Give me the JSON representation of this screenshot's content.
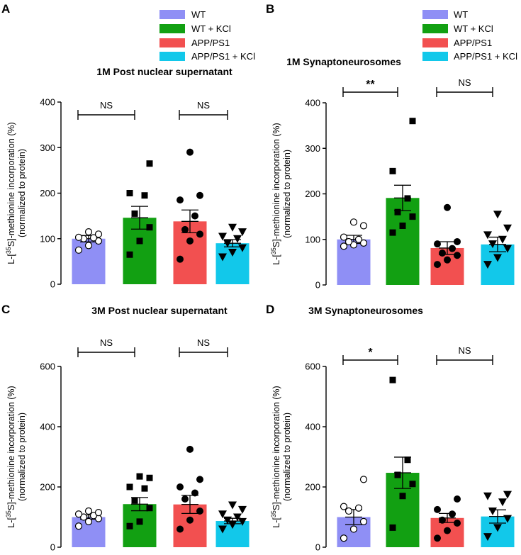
{
  "figure": {
    "ylabel_line1_prefix": "L-[",
    "ylabel_sup": "35",
    "ylabel_line1_suffix": "S]-methionine incorporation (%)",
    "ylabel_line2": "(normalized to protein)"
  },
  "legend": {
    "entries": [
      {
        "label": "WT",
        "color": "#8f8ff5"
      },
      {
        "label": "WT + KCl",
        "color": "#12a012"
      },
      {
        "label": "APP/PS1",
        "color": "#f25050"
      },
      {
        "label": "APP/PS1 + KCl",
        "color": "#12c8ea"
      }
    ]
  },
  "chart_data": [
    {
      "panel": "A",
      "type": "bar",
      "title": "1M Post nuclear supernatant",
      "categories": [
        "WT",
        "WT + KCl",
        "APP/PS1",
        "APP/PS1 + KCl"
      ],
      "values": [
        100,
        146,
        138,
        90
      ],
      "sem": [
        7,
        25,
        25,
        8
      ],
      "points": [
        [
          75,
          85,
          95,
          100,
          102,
          103,
          110,
          115
        ],
        [
          65,
          95,
          125,
          155,
          195,
          200,
          265
        ],
        [
          55,
          95,
          110,
          120,
          150,
          185,
          195,
          290
        ],
        [
          60,
          70,
          80,
          90,
          100,
          105,
          115,
          125
        ]
      ],
      "ylim": [
        0,
        400
      ],
      "yticks": [
        "0",
        "100",
        "200",
        "300",
        "400"
      ],
      "comparisons": [
        {
          "label": "NS",
          "from": 0,
          "to": 1
        },
        {
          "label": "NS",
          "from": 2,
          "to": 3
        }
      ],
      "colors": [
        "#8f8ff5",
        "#12a012",
        "#f25050",
        "#12c8ea"
      ]
    },
    {
      "panel": "B",
      "type": "bar",
      "title": "1M Synaptoneurosomes",
      "categories": [
        "WT",
        "WT + KCl",
        "APP/PS1",
        "APP/PS1 + KCl"
      ],
      "values": [
        100,
        191,
        81,
        89
      ],
      "sem": [
        9,
        28,
        14,
        16
      ],
      "points": [
        [
          85,
          88,
          92,
          95,
          100,
          105,
          130,
          138
        ],
        [
          115,
          130,
          150,
          160,
          190,
          250,
          360
        ],
        [
          45,
          55,
          65,
          70,
          80,
          90,
          95,
          170
        ],
        [
          45,
          60,
          80,
          90,
          100,
          110,
          125,
          155
        ]
      ],
      "ylim": [
        0,
        400
      ],
      "yticks": [
        "0",
        "100",
        "200",
        "300",
        "400"
      ],
      "comparisons": [
        {
          "label": "**",
          "from": 0,
          "to": 1
        },
        {
          "label": "NS",
          "from": 2,
          "to": 3
        }
      ],
      "colors": [
        "#8f8ff5",
        "#12a012",
        "#f25050",
        "#12c8ea"
      ]
    },
    {
      "panel": "C",
      "type": "bar",
      "title": "3M Post nuclear supernatant",
      "categories": [
        "WT",
        "WT + KCl",
        "APP/PS1",
        "APP/PS1 + KCl"
      ],
      "values": [
        100,
        143,
        142,
        87
      ],
      "sem": [
        7,
        22,
        30,
        9
      ],
      "points": [
        [
          70,
          85,
          95,
          100,
          105,
          110,
          115,
          120
        ],
        [
          70,
          85,
          130,
          155,
          195,
          200,
          230,
          235
        ],
        [
          60,
          90,
          120,
          160,
          180,
          200,
          225,
          325
        ],
        [
          60,
          75,
          85,
          90,
          100,
          110,
          125,
          140
        ]
      ],
      "ylim": [
        0,
        600
      ],
      "yticks": [
        "0",
        "200",
        "400",
        "600"
      ],
      "comparisons": [
        {
          "label": "NS",
          "from": 0,
          "to": 1
        },
        {
          "label": "NS",
          "from": 2,
          "to": 3
        }
      ],
      "colors": [
        "#8f8ff5",
        "#12a012",
        "#f25050",
        "#12c8ea"
      ]
    },
    {
      "panel": "D",
      "type": "bar",
      "title": "3M Synaptoneurosomes",
      "categories": [
        "WT",
        "WT + KCl",
        "APP/PS1",
        "APP/PS1 + KCl"
      ],
      "values": [
        100,
        247,
        97,
        102
      ],
      "sem": [
        25,
        52,
        15,
        22
      ],
      "points": [
        [
          30,
          60,
          85,
          120,
          130,
          135,
          225
        ],
        [
          65,
          170,
          210,
          240,
          290,
          555
        ],
        [
          30,
          55,
          80,
          90,
          110,
          125,
          160
        ],
        [
          35,
          65,
          95,
          120,
          150,
          170,
          175
        ]
      ],
      "ylim": [
        0,
        600
      ],
      "yticks": [
        "0",
        "200",
        "400",
        "600"
      ],
      "comparisons": [
        {
          "label": "*",
          "from": 0,
          "to": 1
        },
        {
          "label": "NS",
          "from": 2,
          "to": 3
        }
      ],
      "colors": [
        "#8f8ff5",
        "#12a012",
        "#f25050",
        "#12c8ea"
      ]
    }
  ]
}
